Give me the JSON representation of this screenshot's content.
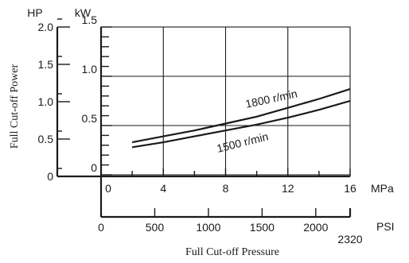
{
  "chart_data": {
    "type": "line",
    "xlabel": "Full Cut-off Pressure",
    "ylabel": "Full Cut-off Power",
    "x_axis_mpa": {
      "unit": "MPa",
      "range": [
        0,
        16
      ],
      "ticks": [
        "0",
        "4",
        "8",
        "12",
        "16"
      ]
    },
    "x_axis_psi": {
      "unit": "PSI",
      "ticks": [
        "0",
        "500",
        "1000",
        "1500",
        "2000"
      ],
      "end_label": "2320"
    },
    "y_axis_hp": {
      "unit": "HP",
      "range": [
        0,
        2.0
      ],
      "ticks": [
        "0",
        "0.5",
        "1.0",
        "1.5",
        "2.0"
      ]
    },
    "y_axis_kw": {
      "unit": "kW",
      "range": [
        0,
        1.5
      ],
      "ticks": [
        "0",
        "0.5",
        "1.0",
        "1.5"
      ]
    },
    "grid": true,
    "series": [
      {
        "name": "1800 r/min",
        "points": [
          [
            2,
            0.33
          ],
          [
            4,
            0.39
          ],
          [
            6,
            0.45
          ],
          [
            8,
            0.52
          ],
          [
            10,
            0.59
          ],
          [
            12,
            0.68
          ],
          [
            14,
            0.77
          ],
          [
            16,
            0.87
          ]
        ]
      },
      {
        "name": "1500 r/min",
        "points": [
          [
            2,
            0.28
          ],
          [
            4,
            0.33
          ],
          [
            6,
            0.39
          ],
          [
            8,
            0.45
          ],
          [
            10,
            0.51
          ],
          [
            12,
            0.58
          ],
          [
            14,
            0.66
          ],
          [
            16,
            0.75
          ]
        ]
      }
    ]
  }
}
